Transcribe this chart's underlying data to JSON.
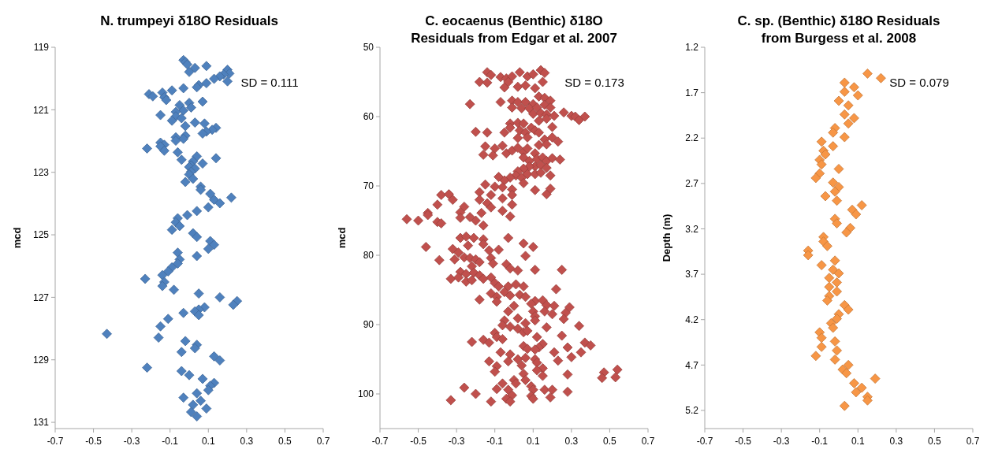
{
  "chart_data": [
    {
      "type": "scatter",
      "title": "N. trumpeyi δ18O Residuals",
      "ylabel": "mcd",
      "annotations": [
        "SD = 0.111"
      ],
      "marker": "diamond",
      "xlim": [
        -0.7,
        0.7
      ],
      "xticks": [
        -0.7,
        -0.5,
        -0.3,
        -0.1,
        0.1,
        0.3,
        0.5,
        0.7
      ],
      "ylim": [
        131.2,
        119
      ],
      "yticks": [
        119,
        121,
        123,
        125,
        127,
        129,
        131
      ],
      "series": [
        {
          "color": "#4f81bd",
          "x": [
            -0.03,
            -0.02,
            -0.01,
            0.03,
            0.09,
            0.0,
            0.2,
            0.21,
            0.18,
            0.16,
            0.13,
            0.2,
            0.09,
            0.05,
            0.04,
            -0.03,
            -0.09,
            -0.14,
            -0.21,
            -0.19,
            -0.13,
            -0.12,
            0.07,
            0.0,
            -0.05,
            0.01,
            -0.03,
            -0.07,
            -0.15,
            -0.07,
            -0.04,
            -0.09,
            0.03,
            0.08,
            -0.02,
            0.14,
            0.12,
            0.09,
            0.07,
            -0.02,
            -0.07,
            -0.03,
            -0.07,
            -0.15,
            -0.13,
            -0.15,
            -0.22,
            -0.13,
            -0.06,
            0.04,
            0.14,
            -0.04,
            0.02,
            0.07,
            0.01,
            0.0,
            0.03,
            0.01,
            0.0,
            0.02,
            -0.02,
            0.06,
            0.06,
            0.11,
            0.22,
            0.13,
            0.16,
            0.1,
            0.04,
            -0.01,
            -0.06,
            -0.07,
            -0.05,
            -0.09,
            0.02,
            0.04,
            0.11,
            0.13,
            0.1,
            -0.06,
            0.04,
            -0.05,
            -0.06,
            -0.09,
            -0.11,
            -0.14,
            -0.23,
            -0.13,
            -0.14,
            -0.08,
            0.05,
            0.16,
            0.25,
            0.23,
            0.08,
            0.05,
            0.03,
            0.05,
            -0.03,
            -0.11,
            -0.15,
            -0.43,
            -0.16,
            -0.02,
            0.04,
            0.03,
            -0.04,
            0.13,
            0.16,
            -0.22,
            -0.04,
            0.0,
            0.07,
            0.13,
            0.11,
            0.1,
            0.04,
            -0.03,
            0.06,
            0.02,
            0.09,
            0.01,
            0.04
          ],
          "values": [
            119.41,
            119.47,
            119.55,
            119.66,
            119.6,
            119.79,
            119.72,
            119.84,
            119.87,
            119.93,
            120.01,
            120.09,
            120.15,
            120.21,
            120.28,
            120.31,
            120.38,
            120.45,
            120.5,
            120.57,
            120.6,
            120.69,
            120.74,
            120.78,
            120.85,
            120.93,
            121.02,
            121.07,
            121.17,
            121.21,
            121.27,
            121.35,
            121.41,
            121.44,
            121.52,
            121.58,
            121.64,
            121.7,
            121.76,
            121.83,
            121.88,
            121.93,
            121.99,
            122.05,
            122.12,
            122.17,
            122.24,
            122.31,
            122.36,
            122.49,
            122.55,
            122.6,
            122.65,
            122.72,
            122.78,
            122.83,
            122.88,
            122.98,
            123.07,
            123.21,
            123.31,
            123.46,
            123.56,
            123.69,
            123.81,
            123.88,
            123.99,
            124.12,
            124.24,
            124.37,
            124.47,
            124.6,
            124.72,
            124.84,
            124.95,
            125.07,
            125.2,
            125.32,
            125.45,
            125.57,
            125.68,
            125.79,
            125.92,
            126.04,
            126.17,
            126.29,
            126.41,
            126.51,
            126.64,
            126.76,
            126.88,
            127.0,
            127.12,
            127.24,
            127.32,
            127.39,
            127.45,
            127.57,
            127.5,
            127.69,
            127.93,
            128.17,
            128.29,
            128.4,
            128.52,
            128.63,
            128.75,
            128.89,
            129.02,
            129.25,
            129.36,
            129.49,
            129.61,
            129.74,
            129.83,
            129.97,
            130.07,
            130.21,
            130.31,
            130.44,
            130.56,
            130.67,
            130.81
          ]
        }
      ]
    },
    {
      "type": "scatter",
      "title": "C. eocaenus (Benthic) δ18O Residuals from Edgar et al. 2007",
      "ylabel": "mcd",
      "annotations": [
        "SD = 0.173"
      ],
      "marker": "diamond",
      "xlim": [
        -0.7,
        0.7
      ],
      "xticks": [
        -0.7,
        -0.5,
        -0.3,
        -0.1,
        0.1,
        0.3,
        0.5,
        0.7
      ],
      "ylim": [
        105,
        50
      ],
      "yticks": [
        50,
        60,
        70,
        80,
        90,
        100
      ],
      "series": [
        {
          "color": "#c0504d",
          "x": [
            -0.14,
            -0.12,
            -0.07,
            -0.04,
            -0.01,
            0.03,
            0.07,
            0.1,
            0.14,
            0.16,
            -0.18,
            -0.14,
            -0.03,
            0.02,
            0.06,
            0.11,
            0.15,
            -0.05,
            -0.23,
            -0.07,
            -0.01,
            0.02,
            -0.01,
            0.04,
            0.06,
            0.1,
            0.13,
            0.16,
            0.19,
            0.08,
            0.12,
            0.16,
            0.19,
            0.1,
            0.14,
            0.17,
            0.21,
            0.26,
            0.3,
            0.32,
            0.34,
            0.37,
            0.17,
            0.13,
            0.2,
            -0.02,
            0.02,
            0.05,
            0.09,
            -0.02,
            0.03,
            0.06,
            0.11,
            0.13,
            -0.2,
            -0.14,
            -0.05,
            0.02,
            0.07,
            0.16,
            0.2,
            0.23,
            0.13,
            0.17,
            -0.15,
            -0.1,
            -0.06,
            -0.04,
            -0.16,
            -0.11,
            -0.01,
            0.02,
            0.05,
            0.07,
            0.11,
            0.05,
            0.08,
            0.12,
            0.15,
            0.17,
            0.2,
            0.24,
            0.11,
            0.14,
            0.17,
            0.08,
            0.05,
            0.02,
            0.01,
            -0.02,
            0.04,
            0.07,
            0.11,
            0.14,
            0.19,
            0.05,
            -0.05,
            -0.08,
            0.11,
            0.17,
            0.19,
            -0.15,
            -0.1,
            -0.06,
            -0.01,
            -0.01,
            -0.18,
            -0.12,
            -0.06,
            -0.01,
            -0.18,
            -0.14,
            -0.12,
            -0.17,
            -0.06,
            -0.02,
            -0.2,
            -0.16,
            -0.23,
            -0.38,
            -0.34,
            -0.32,
            -0.4,
            -0.26,
            -0.28,
            -0.45,
            -0.45,
            -0.28,
            -0.56,
            -0.5,
            -0.4,
            -0.38,
            -0.28,
            -0.25,
            -0.21,
            -0.16,
            -0.16,
            -0.24,
            -0.03,
            0.05,
            0.1,
            0.06,
            -0.46,
            -0.32,
            -0.29,
            -0.31,
            -0.26,
            -0.39,
            -0.23,
            -0.2,
            -0.18,
            -0.22,
            -0.13,
            -0.08,
            -0.12,
            -0.11,
            -0.04,
            -0.02,
            0.02,
            0.11,
            0.25,
            -0.28,
            -0.25,
            -0.21,
            -0.18,
            -0.33,
            -0.29,
            -0.25,
            -0.22,
            -0.16,
            -0.12,
            -0.1,
            -0.08,
            -0.03,
            0.01,
            0.05,
            0.22,
            -0.12,
            -0.09,
            -0.05,
            -0.02,
            0.03,
            0.06,
            -0.18,
            -0.09,
            0.11,
            0.15,
            0.17,
            0.21,
            0.29,
            0.09,
            0.16,
            0.2,
            0.27,
            0.26,
            0.0,
            -0.03,
            0.1,
            0.11,
            0.02,
            0.06,
            0.11,
            -0.05,
            -0.06,
            -0.02,
            0.02,
            0.05,
            0.07,
            0.17,
            0.34,
            0.25,
            0.12,
            -0.1,
            -0.09,
            -0.06,
            -0.16,
            -0.13,
            -0.22,
            0.37,
            0.4,
            0.15,
            0.13,
            0.05,
            0.07,
            0.11,
            0.28,
            0.21,
            0.3,
            0.35,
            -0.07,
            -0.02,
            0.02,
            0.06,
            0.11,
            -0.13,
            -0.03,
            0.04,
            0.12,
            0.15,
            -0.09,
            -0.1,
            0.05,
            0.12,
            0.15,
            0.23,
            0.28,
            0.54,
            0.47,
            0.46,
            0.53,
            0.06,
            0.0,
            0.01,
            0.09,
            0.1,
            -0.06,
            -0.09,
            -0.03,
            -0.01,
            -0.04,
            -0.02,
            0.09,
            0.1,
            0.16,
            0.2,
            0.19,
            0.28,
            -0.26,
            -0.2,
            -0.33,
            -0.12
          ],
          "values": [
            53.6,
            54.0,
            54.3,
            54.5,
            54.2,
            53.6,
            54.2,
            53.9,
            53.3,
            53.7,
            55.0,
            55.1,
            55.0,
            55.7,
            55.5,
            55.9,
            55.0,
            55.8,
            58.2,
            57.9,
            57.7,
            57.9,
            58.7,
            58.8,
            57.9,
            58.2,
            57.1,
            57.3,
            57.7,
            58.8,
            58.7,
            58.3,
            58.7,
            59.6,
            59.5,
            59.7,
            59.9,
            59.4,
            59.9,
            60.0,
            60.5,
            60.0,
            60.3,
            60.6,
            61.5,
            61.0,
            60.9,
            61.0,
            61.6,
            61.6,
            62.0,
            62.3,
            62.0,
            62.3,
            62.2,
            62.3,
            62.3,
            63.1,
            63.0,
            63.3,
            63.0,
            63.6,
            64.1,
            64.0,
            64.3,
            64.6,
            64.2,
            65.3,
            65.5,
            65.6,
            64.9,
            64.5,
            65.1,
            64.6,
            65.3,
            65.9,
            66.4,
            66.1,
            65.9,
            66.4,
            66.0,
            66.2,
            67.2,
            67.0,
            67.4,
            67.2,
            67.5,
            67.9,
            68.5,
            68.8,
            68.8,
            68.3,
            68.3,
            68.1,
            68.5,
            69.6,
            69.2,
            68.7,
            70.6,
            71.2,
            70.4,
            69.8,
            70.1,
            70.2,
            70.5,
            71.3,
            70.9,
            71.3,
            71.8,
            72.7,
            72.0,
            72.5,
            73.1,
            73.9,
            73.6,
            74.4,
            75.0,
            75.7,
            74.5,
            71.3,
            71.2,
            72.0,
            72.7,
            73.0,
            73.8,
            73.9,
            74.2,
            74.6,
            74.8,
            75.0,
            75.2,
            75.4,
            77.5,
            77.3,
            77.5,
            77.7,
            78.4,
            78.6,
            77.5,
            78.3,
            78.8,
            80.1,
            78.8,
            79.1,
            79.6,
            80.6,
            80.3,
            80.7,
            80.4,
            80.6,
            81.0,
            81.6,
            79.3,
            79.2,
            80.4,
            81.2,
            81.3,
            81.9,
            82.2,
            82.1,
            82.1,
            82.4,
            82.7,
            82.5,
            82.9,
            83.4,
            83.2,
            83.8,
            83.6,
            83.4,
            83.2,
            84.0,
            84.5,
            84.5,
            84.2,
            84.5,
            84.9,
            85.5,
            86.0,
            85.3,
            85.8,
            85.7,
            86.0,
            86.4,
            86.7,
            86.6,
            86.5,
            87.2,
            87.3,
            87.5,
            87.0,
            88.1,
            88.5,
            88.3,
            89.2,
            87.3,
            88.1,
            88.1,
            88.8,
            89.1,
            89.8,
            89.4,
            89.4,
            90.1,
            90.3,
            90.6,
            91.1,
            90.9,
            90.4,
            90.2,
            91.6,
            91.8,
            91.2,
            91.8,
            92.1,
            92.2,
            92.6,
            92.5,
            92.6,
            93.0,
            92.8,
            93.3,
            93.1,
            93.5,
            93.6,
            93.3,
            94.0,
            94.7,
            94.0,
            94.0,
            94.3,
            95.0,
            94.8,
            95.0,
            95.3,
            95.3,
            95.9,
            95.5,
            96.3,
            96.0,
            96.8,
            97.1,
            96.6,
            97.4,
            95.2,
            97.2,
            96.5,
            96.9,
            97.7,
            97.6,
            98.0,
            98.0,
            98.5,
            98.9,
            99.4,
            98.5,
            99.3,
            99.4,
            100.2,
            100.7,
            101.1,
            100.3,
            100.7,
            99.4,
            99.4,
            100.5,
            99.7,
            99.1,
            100.0,
            100.9,
            101.1
          ]
        }
      ]
    },
    {
      "type": "scatter",
      "title": "C. sp. (Benthic) δ18O Residuals from Burgess et al. 2008",
      "ylabel": "Depth (m)",
      "annotations": [
        "SD = 0.079"
      ],
      "marker": "diamond",
      "xlim": [
        -0.7,
        0.7
      ],
      "xticks": [
        -0.7,
        -0.5,
        -0.3,
        -0.1,
        0.1,
        0.3,
        0.5,
        0.7
      ],
      "ylim": [
        5.4,
        1.2
      ],
      "yticks": [
        1.2,
        1.7,
        2.2,
        2.7,
        3.2,
        3.7,
        4.2,
        4.7,
        5.2
      ],
      "series": [
        {
          "color": "#f79646",
          "x": [
            0.15,
            0.22,
            0.03,
            0.08,
            0.03,
            0.1,
            0.0,
            0.05,
            0.03,
            0.08,
            0.05,
            -0.02,
            -0.03,
            0.03,
            -0.09,
            -0.03,
            -0.08,
            -0.07,
            -0.1,
            -0.09,
            0.0,
            -0.1,
            -0.12,
            -0.03,
            0.0,
            -0.02,
            -0.07,
            -0.01,
            0.12,
            0.07,
            0.09,
            -0.02,
            -0.01,
            0.06,
            0.04,
            -0.08,
            -0.08,
            -0.06,
            -0.16,
            -0.16,
            -0.02,
            -0.09,
            -0.03,
            0.0,
            -0.05,
            -0.01,
            -0.05,
            -0.01,
            -0.05,
            -0.06,
            0.03,
            0.05,
            0.0,
            -0.01,
            -0.04,
            -0.03,
            -0.1,
            -0.09,
            -0.02,
            -0.09,
            -0.01,
            -0.12,
            -0.02,
            0.05,
            0.02,
            0.04,
            0.19,
            0.08,
            0.12,
            0.09,
            0.15,
            0.15,
            0.03
          ],
          "values": [
            1.49,
            1.54,
            1.59,
            1.64,
            1.69,
            1.73,
            1.79,
            1.84,
            1.94,
            1.98,
            2.04,
            2.09,
            2.14,
            2.19,
            2.24,
            2.29,
            2.34,
            2.38,
            2.44,
            2.49,
            2.54,
            2.59,
            2.64,
            2.69,
            2.74,
            2.79,
            2.84,
            2.89,
            2.94,
            2.99,
            3.04,
            3.09,
            3.14,
            3.19,
            3.24,
            3.29,
            3.34,
            3.39,
            3.44,
            3.49,
            3.55,
            3.6,
            3.65,
            3.69,
            3.74,
            3.79,
            3.84,
            3.89,
            3.94,
            3.99,
            4.04,
            4.09,
            4.14,
            4.19,
            4.24,
            4.29,
            4.34,
            4.4,
            4.44,
            4.5,
            4.54,
            4.6,
            4.64,
            4.7,
            4.75,
            4.79,
            4.85,
            4.9,
            4.95,
            5.0,
            5.05,
            5.09,
            5.15
          ]
        }
      ]
    }
  ]
}
